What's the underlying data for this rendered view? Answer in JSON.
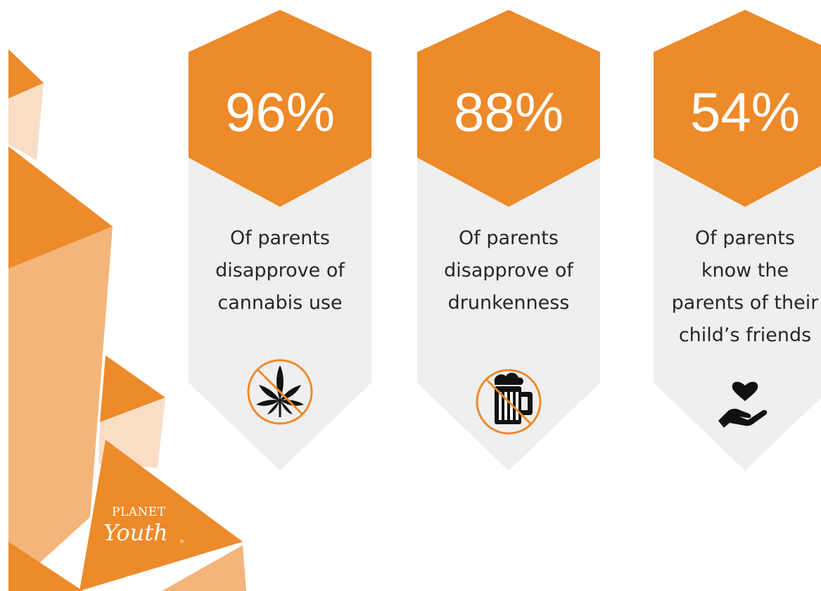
{
  "colors": {
    "accent": "#ED8A2A",
    "accent_light": "#F3B57A",
    "accent_pale": "#F9DEC5",
    "card_bg": "#EFEFEF",
    "text": "#262626"
  },
  "logo": {
    "top": "PLANET",
    "main": "Youth",
    "reg": "®"
  },
  "cards": [
    {
      "value": "96%",
      "lines": [
        "Of parents",
        "disapprove of",
        "cannabis use"
      ],
      "icon": "no-cannabis-icon"
    },
    {
      "value": "88%",
      "lines": [
        "Of parents",
        "disapprove of",
        "drunkenness"
      ],
      "icon": "no-beer-icon"
    },
    {
      "value": "54%",
      "lines": [
        "Of parents",
        "know the",
        "parents of their",
        "child’s friends"
      ],
      "icon": "heart-in-hand-icon"
    }
  ]
}
